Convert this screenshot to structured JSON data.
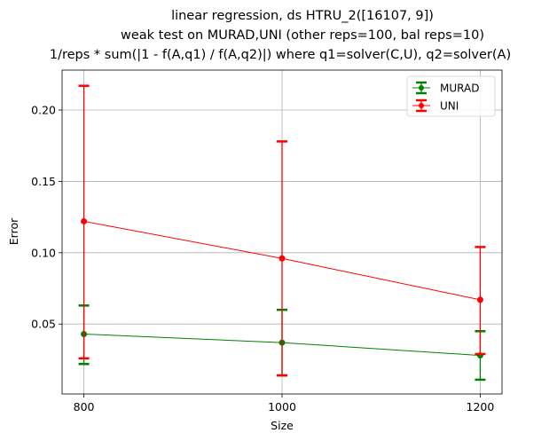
{
  "chart_data": {
    "type": "line",
    "title_lines": [
      "linear regression, ds HTRU_2([16107, 9])",
      "weak test on MURAD,UNI (other reps=100, bal reps=10)",
      "1/reps * sum(|1 - f(A,q1) / f(A,q2)|) where q1=solver(C,U), q2=solver(A)"
    ],
    "xlabel": "Size",
    "ylabel": "Error",
    "x": [
      800,
      1000,
      1200
    ],
    "xticks": [
      800,
      1000,
      1200
    ],
    "xtick_labels": [
      "800",
      "1000",
      "1200"
    ],
    "xlim": [
      778,
      1222
    ],
    "yticks": [
      0.05,
      0.1,
      0.15,
      0.2
    ],
    "ytick_labels": [
      "0.05",
      "0.10",
      "0.15",
      "0.20"
    ],
    "ylim": [
      0.001,
      0.228
    ],
    "grid": true,
    "legend_position": "upper right",
    "series": [
      {
        "name": "MURAD",
        "color": "#008000",
        "values": [
          0.043,
          0.037,
          0.028
        ],
        "err_low": [
          0.022,
          0.014,
          0.011
        ],
        "err_high": [
          0.063,
          0.06,
          0.045
        ]
      },
      {
        "name": "UNI",
        "color": "#ff0000",
        "values": [
          0.122,
          0.096,
          0.067
        ],
        "err_low": [
          0.026,
          0.014,
          0.029
        ],
        "err_high": [
          0.217,
          0.178,
          0.104
        ]
      }
    ]
  }
}
